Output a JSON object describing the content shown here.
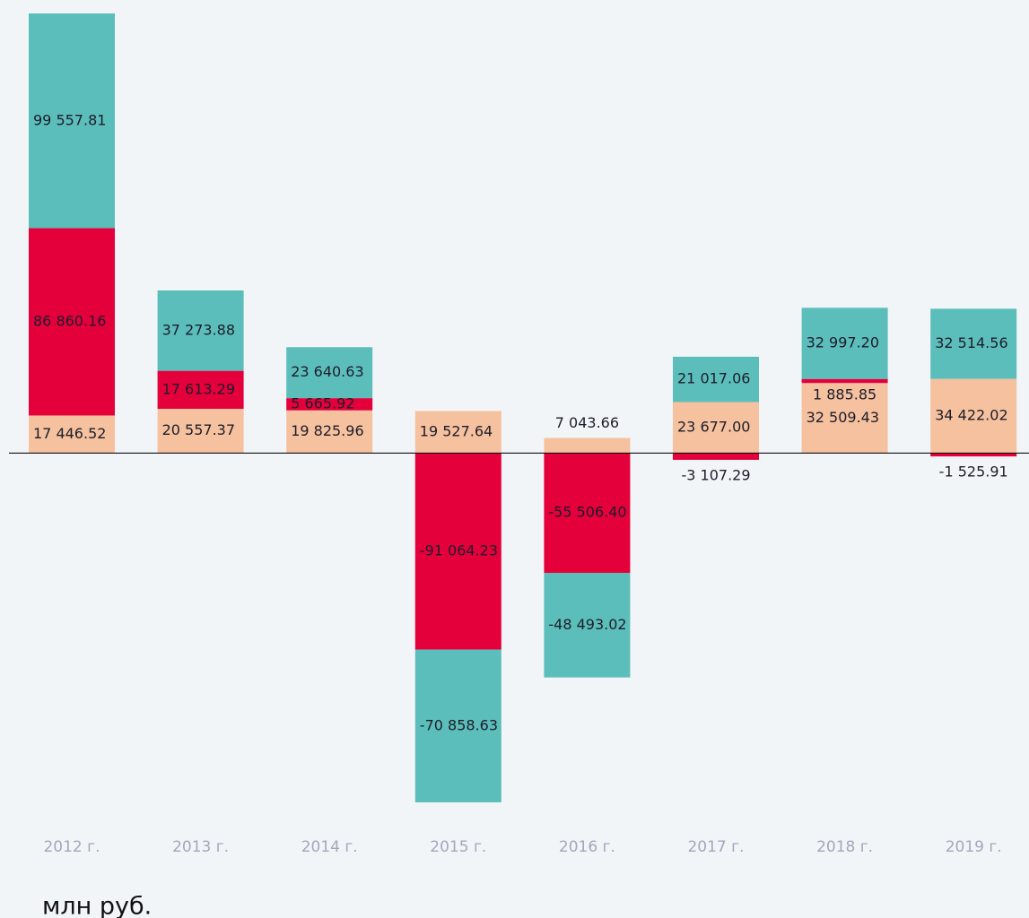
{
  "chart_data": {
    "type": "bar",
    "stacked": true,
    "categories": [
      "2012 г.",
      "2013 г.",
      "2014 г.",
      "2015 г.",
      "2016 г.",
      "2017 г.",
      "2018 г.",
      "2019 г."
    ],
    "series": [
      {
        "color": "#f5c19e",
        "values": [
          17446.52,
          20557.37,
          19825.96,
          19527.64,
          7043.66,
          23677.0,
          32509.43,
          34422.02
        ],
        "value_labels": [
          "17 446.52",
          "20 557.37",
          "19 825.96",
          "19 527.64",
          "7 043.66",
          "23 677.00",
          "32 509.43",
          "34 422.02"
        ]
      },
      {
        "color": "#e4003b",
        "values": [
          86860.16,
          17613.29,
          5665.92,
          -91064.23,
          -55506.4,
          -3107.29,
          1885.85,
          -1525.91
        ],
        "value_labels": [
          "86 860.16",
          "17 613.29",
          "5 665.92",
          "-91 064.23",
          "-55 506.40",
          "-3 107.29",
          "1 885.85",
          "-1 525.91"
        ]
      },
      {
        "color": "#5cbebb",
        "values": [
          99557.81,
          37273.88,
          23640.63,
          -70858.63,
          -48493.02,
          21017.06,
          32997.2,
          32514.56
        ],
        "value_labels": [
          "99 557.81",
          "37 273.88",
          "23 640.63",
          "-70 858.63",
          "-48 493.02",
          "21 017.06",
          "32 997.20",
          "32 514.56"
        ]
      }
    ],
    "unit_label": "млн руб."
  }
}
